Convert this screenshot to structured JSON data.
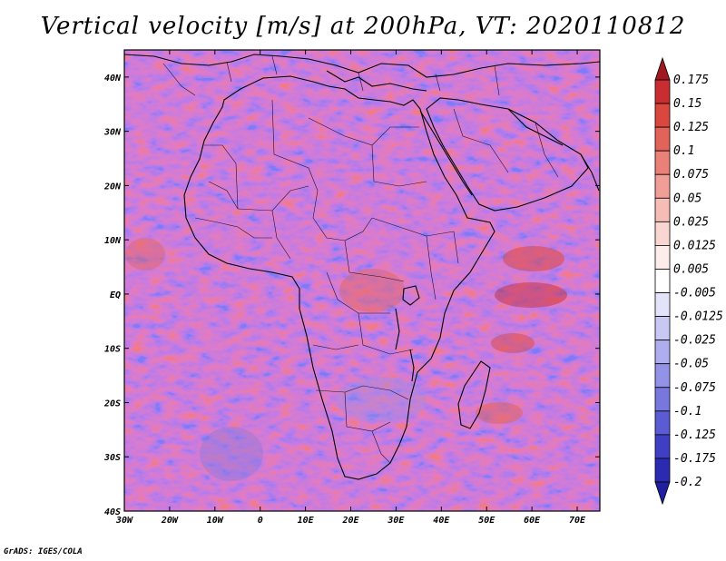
{
  "title": "Vertical velocity [m/s] at 200hPa, VT: 2020110812",
  "credit": "GrADS: IGES/COLA",
  "map": {
    "lon_range": [
      -30,
      75
    ],
    "lat_range": [
      -40,
      45
    ],
    "lat_ticks": [
      {
        "value": 40,
        "label": "40N"
      },
      {
        "value": 30,
        "label": "30N"
      },
      {
        "value": 20,
        "label": "20N"
      },
      {
        "value": 10,
        "label": "10N"
      },
      {
        "value": 0,
        "label": "EQ"
      },
      {
        "value": -10,
        "label": "10S"
      },
      {
        "value": -20,
        "label": "20S"
      },
      {
        "value": -30,
        "label": "30S"
      },
      {
        "value": -40,
        "label": "40S"
      }
    ],
    "lon_ticks": [
      {
        "value": -30,
        "label": "30W"
      },
      {
        "value": -20,
        "label": "20W"
      },
      {
        "value": -10,
        "label": "10W"
      },
      {
        "value": 0,
        "label": "0"
      },
      {
        "value": 10,
        "label": "10E"
      },
      {
        "value": 20,
        "label": "20E"
      },
      {
        "value": 30,
        "label": "30E"
      },
      {
        "value": 40,
        "label": "40E"
      },
      {
        "value": 50,
        "label": "50E"
      },
      {
        "value": 60,
        "label": "60E"
      },
      {
        "value": 70,
        "label": "70E"
      }
    ]
  },
  "colorbar": {
    "levels": [
      {
        "label": "0.175",
        "color": "#b61e25"
      },
      {
        "label": "0.15",
        "color": "#c92d31"
      },
      {
        "label": "0.125",
        "color": "#d9473f"
      },
      {
        "label": "0.1",
        "color": "#e2635a"
      },
      {
        "label": "0.075",
        "color": "#ea8078"
      },
      {
        "label": "0.05",
        "color": "#f19e97"
      },
      {
        "label": "0.025",
        "color": "#f6bcb6"
      },
      {
        "label": "0.0125",
        "color": "#f9d6d2"
      },
      {
        "label": "0.005",
        "color": "#fcecea"
      },
      {
        "label": "-0.005",
        "color": "#ffffff"
      },
      {
        "label": "-0.0125",
        "color": "#e3e3fa"
      },
      {
        "label": "-0.025",
        "color": "#c8c8f3"
      },
      {
        "label": "-0.05",
        "color": "#aeaeee"
      },
      {
        "label": "-0.075",
        "color": "#9292e6"
      },
      {
        "label": "-0.1",
        "color": "#7777dd"
      },
      {
        "label": "-0.125",
        "color": "#5b5bd3"
      },
      {
        "label": "-0.175",
        "color": "#3f3fc4"
      },
      {
        "label": "-0.2",
        "color": "#2b2bb2"
      }
    ],
    "top_arrow_color": "#a01820",
    "bottom_arrow_color": "#1f1fa0"
  }
}
